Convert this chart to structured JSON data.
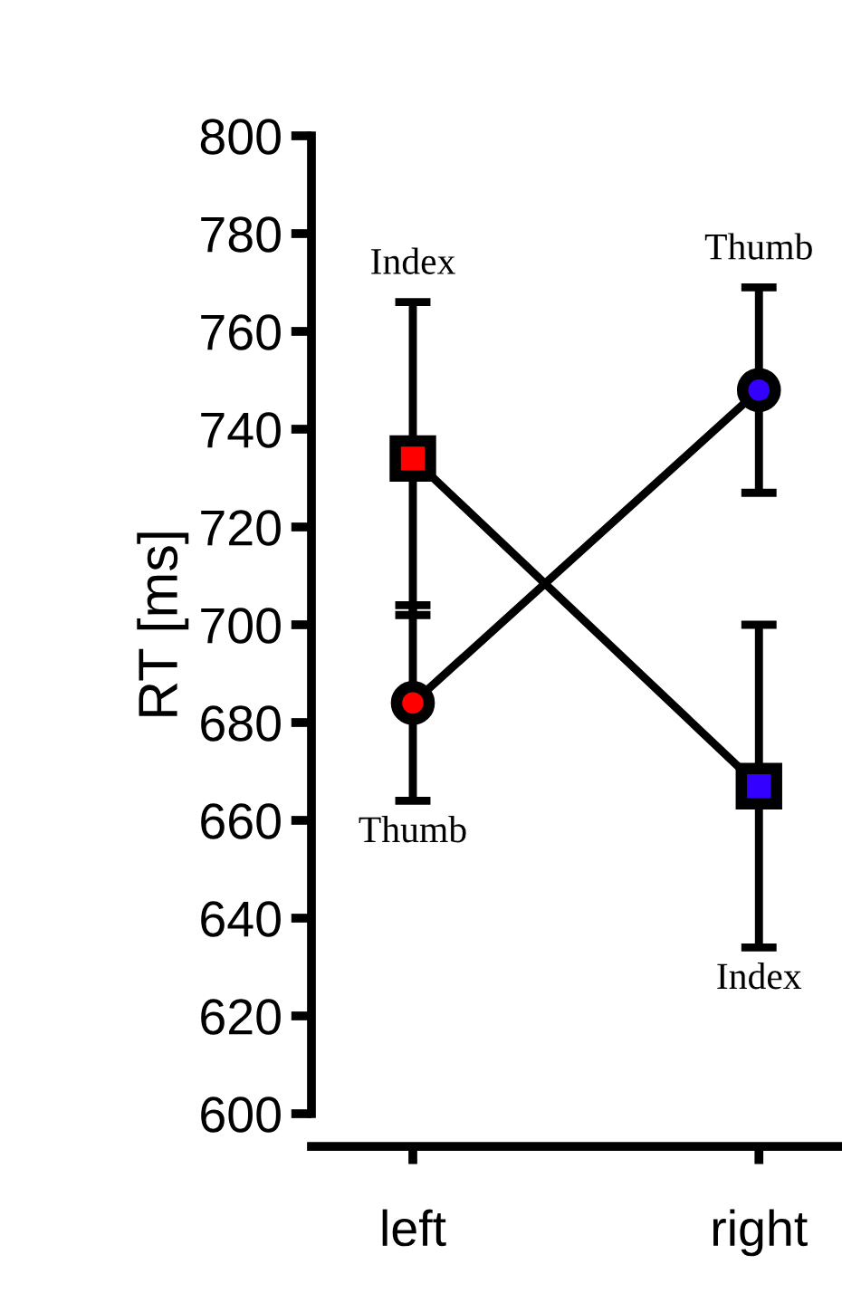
{
  "chart_data": {
    "type": "line",
    "ylabel": "RT [ms]",
    "categories": [
      "left",
      "right"
    ],
    "ylim": [
      600,
      800
    ],
    "yticks": [
      600,
      620,
      640,
      660,
      680,
      700,
      720,
      740,
      760,
      780,
      800
    ],
    "grid": false,
    "legend": false,
    "line_style": "solid",
    "series": [
      {
        "color": "#000000",
        "marker": "circle",
        "colors": [
          "#ff0000",
          "#3300ff"
        ],
        "values": [
          684,
          748
        ],
        "errors": [
          [
            664,
            704
          ],
          [
            727,
            769
          ]
        ]
      },
      {
        "color": "#000000",
        "marker": "square",
        "colors": [
          "#ff0000",
          "#3300ff"
        ],
        "values": [
          734,
          667
        ],
        "errors": [
          [
            702,
            766
          ],
          [
            634,
            700
          ]
        ]
      }
    ],
    "annotations": [
      "Thumb",
      "Index",
      "Thumb",
      "Index"
    ]
  }
}
